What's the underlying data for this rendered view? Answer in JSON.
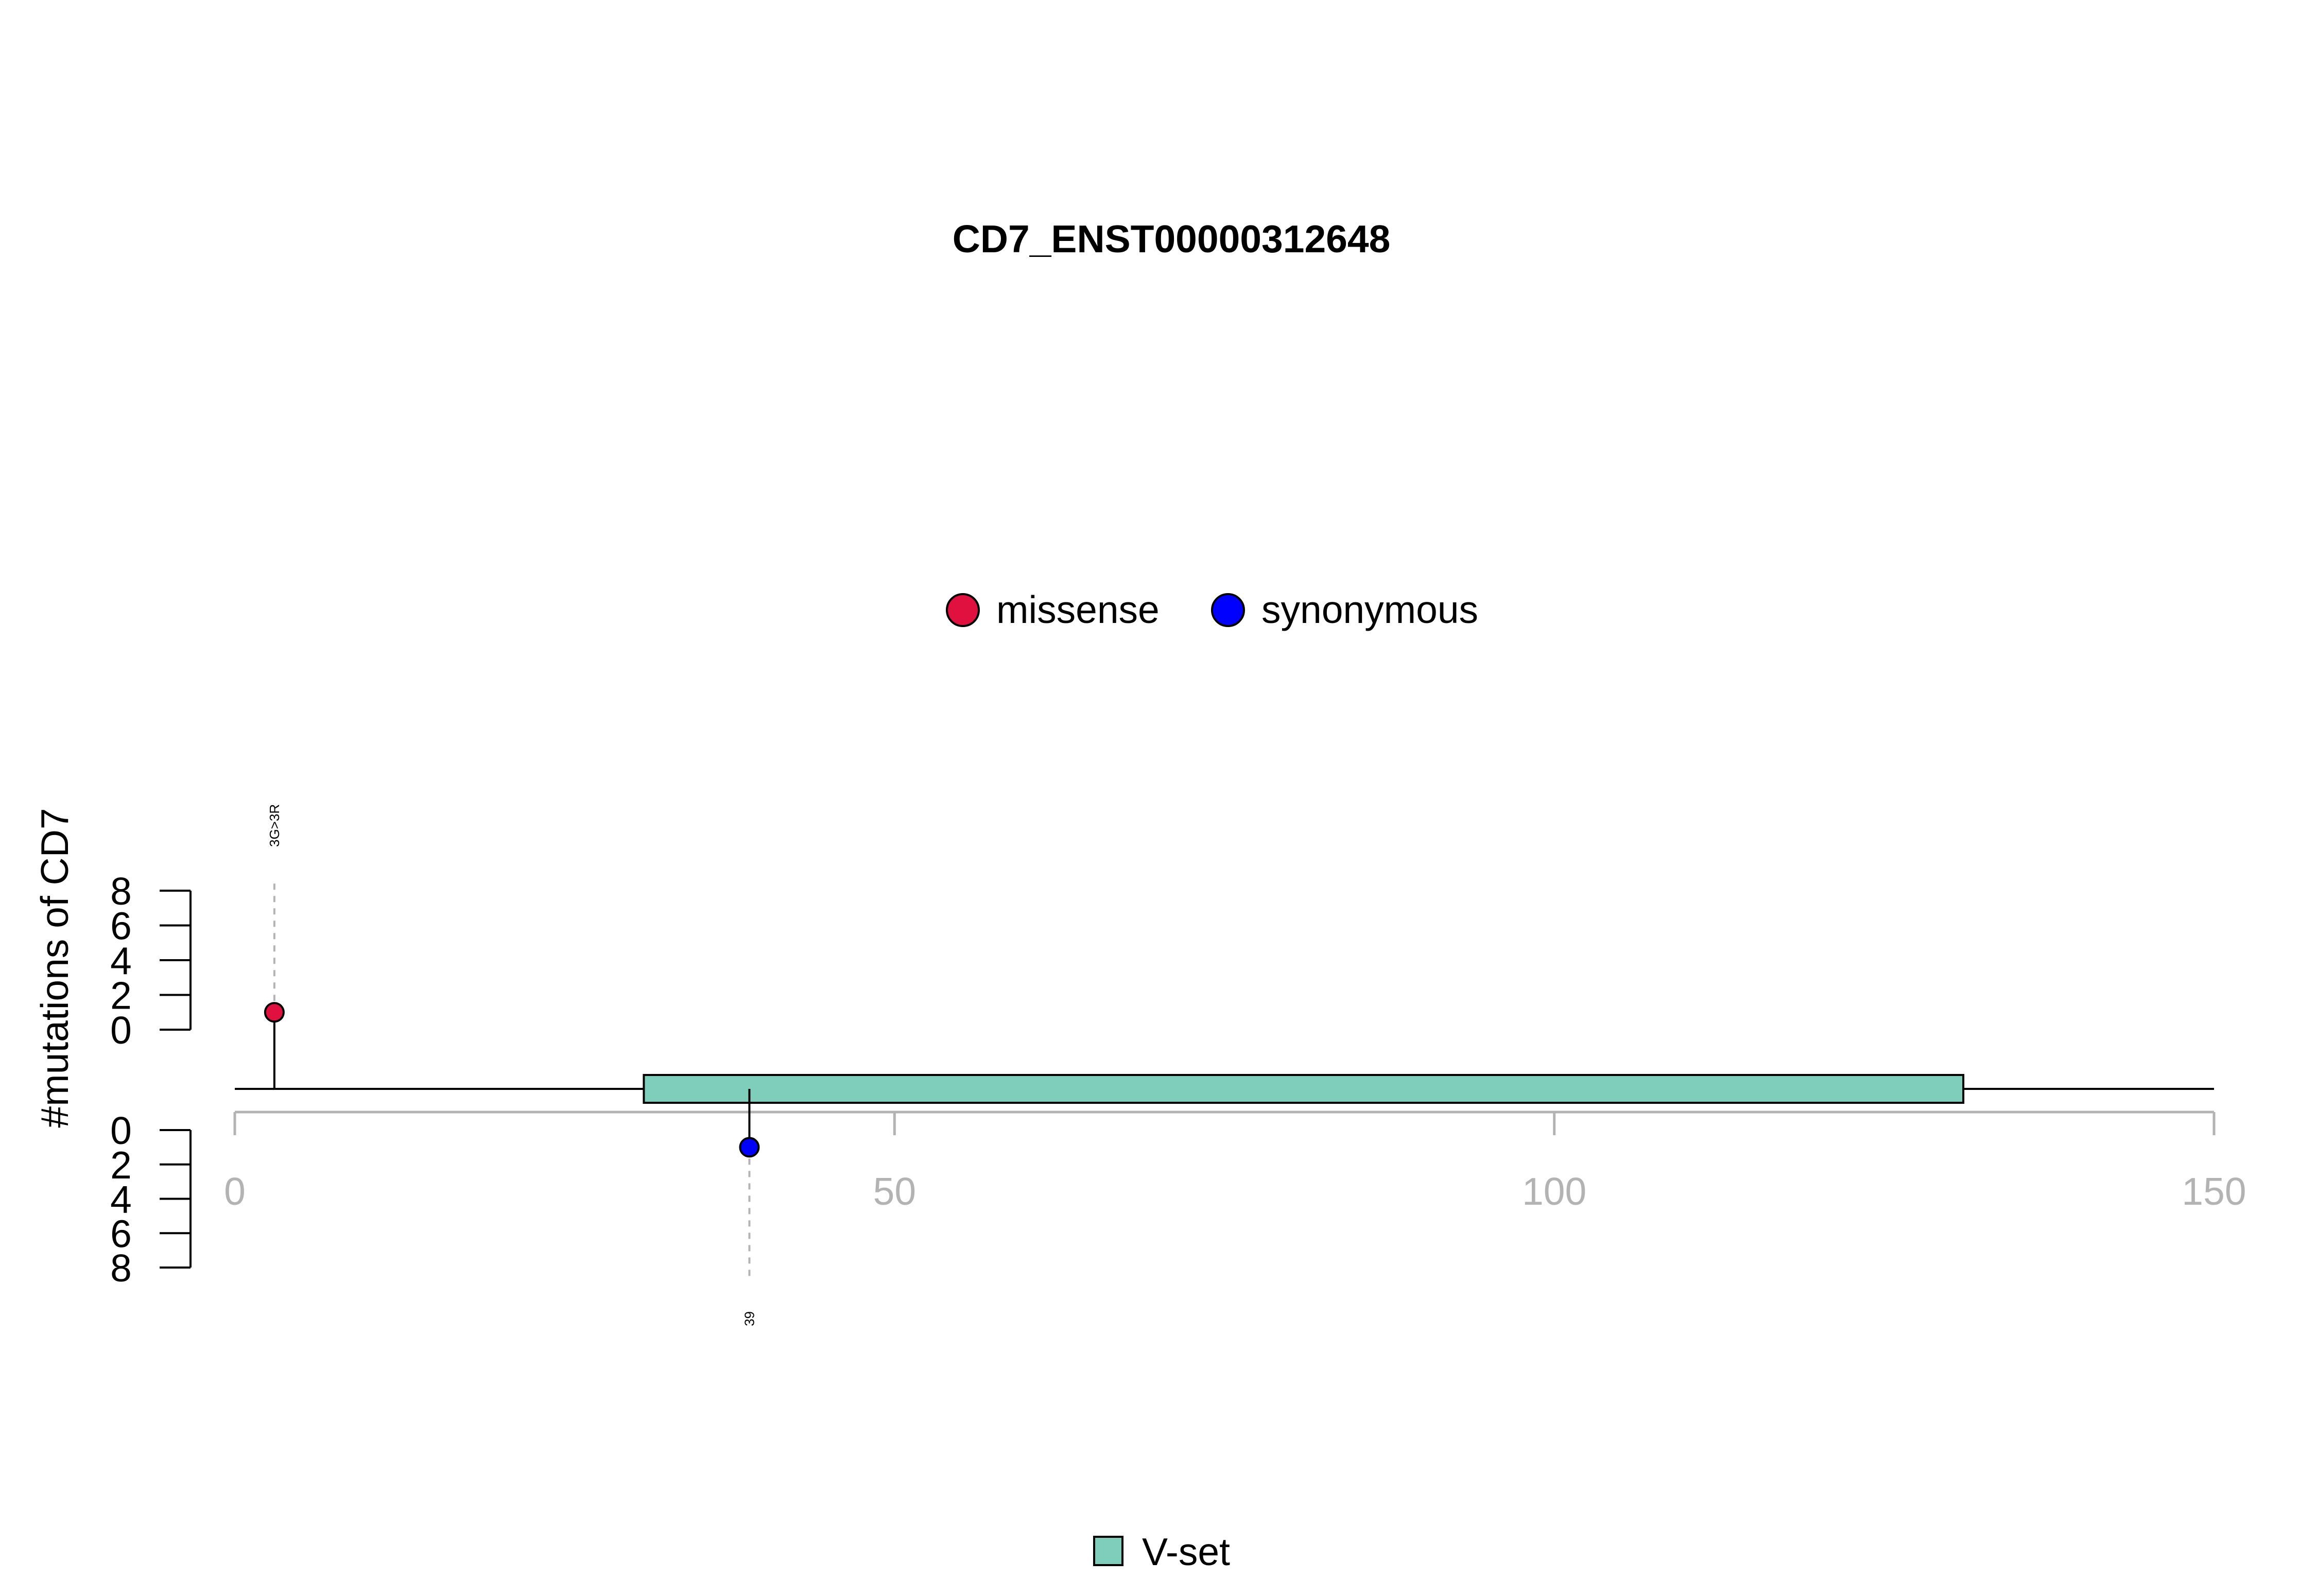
{
  "chart_data": {
    "type": "lollipop",
    "title": "CD7_ENST00000312648",
    "ylabel": "#mutations of CD7",
    "xlim": [
      0,
      150
    ],
    "x_ticks": [
      0,
      50,
      100,
      150
    ],
    "y_ticks": [
      0,
      2,
      4,
      6,
      8
    ],
    "y_range": [
      0,
      8
    ],
    "protein_length": 150,
    "colors": {
      "missense": "#e0103f",
      "synonymous": "#0000ff",
      "domain": "#7fcdbb",
      "x_axis": "#b3b3b3",
      "annotation_line": "#b3b3b3"
    },
    "mutation_legend": [
      {
        "label": "missense",
        "color": "#e0103f"
      },
      {
        "label": "synonymous",
        "color": "#0000ff"
      }
    ],
    "domain_legend": [
      {
        "label": "V-set",
        "color": "#7fcdbb"
      }
    ],
    "mutations": [
      {
        "position": 3,
        "count": 1,
        "type": "missense",
        "side": "top",
        "label": "3G>3R"
      },
      {
        "position": 39,
        "count": 1,
        "type": "synonymous",
        "side": "bottom",
        "label": "39"
      }
    ],
    "domains": [
      {
        "name": "V-set",
        "start": 31,
        "end": 131
      }
    ]
  }
}
